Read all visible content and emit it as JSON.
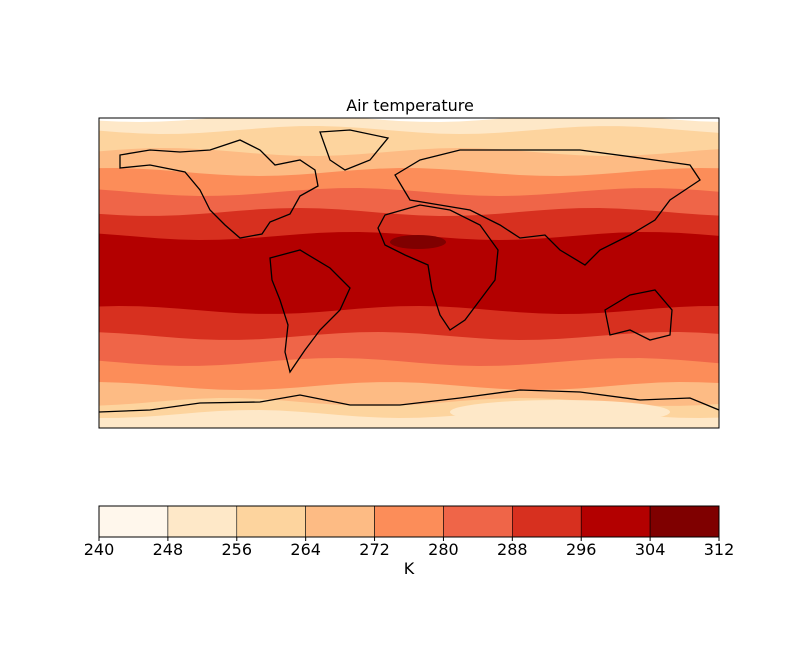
{
  "map": {
    "title": "Air temperature",
    "colorbar": {
      "label": "K",
      "levels": [
        240,
        248,
        256,
        264,
        272,
        280,
        288,
        296,
        304,
        312
      ],
      "colors": [
        "#fff7ec",
        "#fee8c8",
        "#fdd49e",
        "#fdbb84",
        "#fc8d59",
        "#ef6548",
        "#d7301f",
        "#b30000",
        "#7f0000"
      ]
    }
  }
}
